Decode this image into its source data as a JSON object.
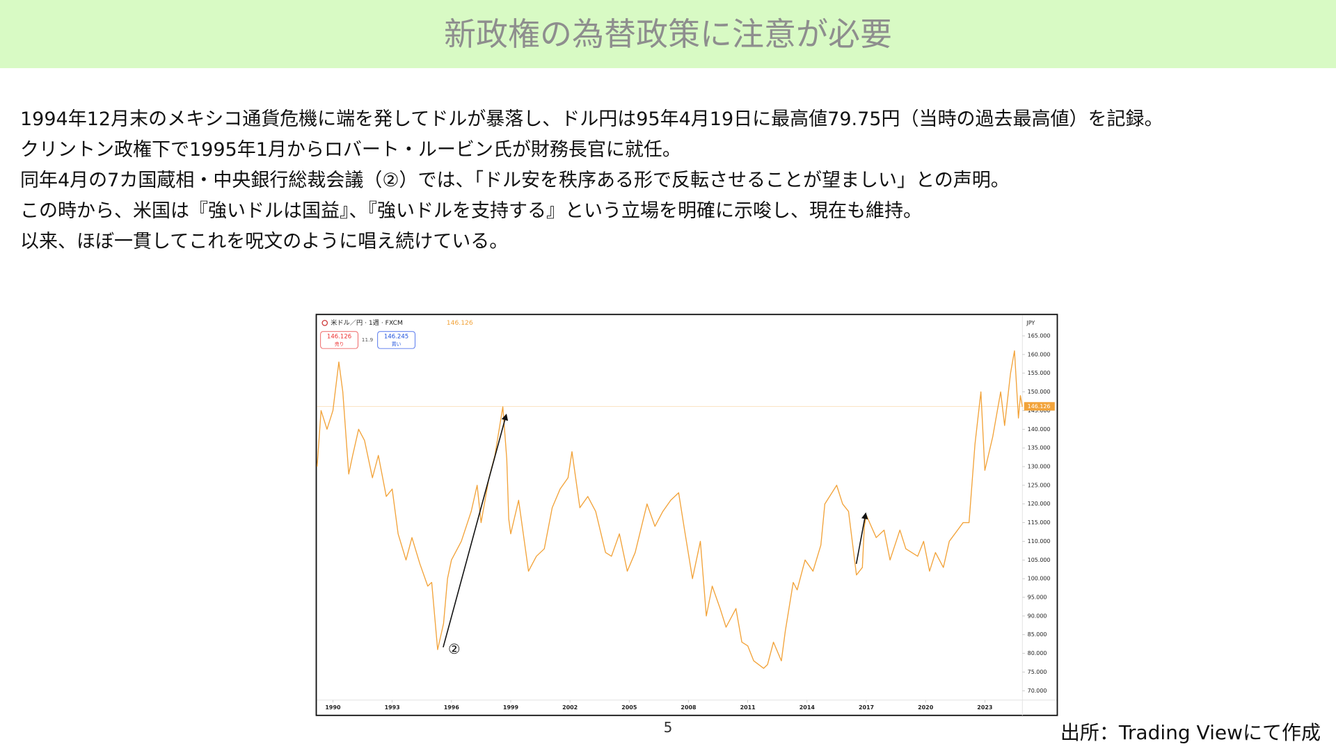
{
  "header": {
    "title": "新政権の為替政策に注意が必要"
  },
  "body": {
    "lines": [
      "1994年12月末のメキシコ通貨危機に端を発してドルが暴落し、ドル円は95年4月19日に最高値79.75円（当時の過去最高値）を記録。",
      "クリントン政権下で1995年1月からロバート・ルービン氏が財務長官に就任。",
      "同年4月の7カ国蔵相・中央銀行総裁会議（②）では、「ドル安を秩序ある形で反転させることが望ましい」との声明。",
      "この時から、米国は『強いドルは国益』、『強いドルを支持する』という立場を明確に示唆し、現在も維持。",
      "以来、ほぼ一貫してこれを呪文のように唱え続けている。"
    ]
  },
  "chart_data": {
    "type": "line",
    "title": "米ドル／円 · 1週 · FXCM",
    "last_price": 146.126,
    "last_price_label": "146.126",
    "sell": {
      "label": "146.126",
      "text": "売り"
    },
    "spread": "11.9",
    "buy": {
      "label": "146.245",
      "text": "買い"
    },
    "currency": "JPY",
    "annotation": "②",
    "series": [
      {
        "name": "米ドル／円",
        "color": "#f2a33a",
        "x": [
          1989.2,
          1989.4,
          1989.7,
          1990.0,
          1990.3,
          1990.5,
          1990.8,
          1991.0,
          1991.3,
          1991.6,
          1992.0,
          1992.3,
          1992.7,
          1993.0,
          1993.3,
          1993.7,
          1994.0,
          1994.4,
          1994.8,
          1995.0,
          1995.3,
          1995.6,
          1995.8,
          1996.0,
          1996.5,
          1997.0,
          1997.3,
          1997.5,
          1997.9,
          1998.2,
          1998.6,
          1998.8,
          1998.9,
          1999.0,
          1999.4,
          1999.9,
          2000.3,
          2000.7,
          2001.1,
          2001.5,
          2001.9,
          2002.1,
          2002.5,
          2002.9,
          2003.3,
          2003.8,
          2004.1,
          2004.5,
          2004.9,
          2005.3,
          2005.9,
          2006.3,
          2006.7,
          2007.1,
          2007.5,
          2007.8,
          2008.2,
          2008.6,
          2008.9,
          2009.2,
          2009.6,
          2009.9,
          2010.4,
          2010.7,
          2011.0,
          2011.3,
          2011.8,
          2012.0,
          2012.3,
          2012.7,
          2012.9,
          2013.3,
          2013.5,
          2013.9,
          2014.3,
          2014.7,
          2014.9,
          2015.5,
          2015.8,
          2016.1,
          2016.5,
          2016.8,
          2016.9,
          2017.0,
          2017.5,
          2017.9,
          2018.2,
          2018.7,
          2019.0,
          2019.6,
          2019.9,
          2020.2,
          2020.5,
          2020.9,
          2021.2,
          2021.9,
          2022.2,
          2022.5,
          2022.8,
          2023.0,
          2023.4,
          2023.8,
          2024.0,
          2024.3,
          2024.5,
          2024.7,
          2024.8,
          2024.9
        ],
        "values": [
          130,
          145,
          140,
          145,
          158,
          150,
          128,
          133,
          140,
          137,
          127,
          133,
          122,
          124,
          112,
          105,
          111,
          104,
          98,
          99,
          81,
          88,
          100,
          105,
          110,
          118,
          125,
          115,
          127,
          133,
          146,
          132,
          116,
          112,
          121,
          102,
          106,
          108,
          119,
          124,
          127,
          134,
          119,
          122,
          118,
          107,
          106,
          112,
          102,
          107,
          120,
          114,
          118,
          121,
          123,
          113,
          100,
          110,
          90,
          98,
          92,
          87,
          92,
          83,
          82,
          78,
          76,
          77,
          83,
          78,
          86,
          99,
          97,
          105,
          102,
          109,
          120,
          125,
          120,
          118,
          101,
          103,
          114,
          117,
          111,
          113,
          105,
          113,
          108,
          106,
          110,
          102,
          107,
          103,
          110,
          115,
          115,
          136,
          150,
          129,
          138,
          150,
          141,
          155,
          161,
          143,
          149,
          146
        ]
      }
    ],
    "xlim": [
      1989.2,
      2024.9
    ],
    "ylim": [
      67.5,
      170.5
    ],
    "xticks": [
      1990,
      1993,
      1996,
      1999,
      2002,
      2005,
      2008,
      2011,
      2014,
      2017,
      2020,
      2023
    ],
    "yticks": [
      {
        "value": 70,
        "label": "70.000"
      },
      {
        "value": 75,
        "label": "75.000"
      },
      {
        "value": 80,
        "label": "80.000"
      },
      {
        "value": 85,
        "label": "85.000"
      },
      {
        "value": 90,
        "label": "90.000"
      },
      {
        "value": 95,
        "label": "95.000"
      },
      {
        "value": 100,
        "label": "100.000"
      },
      {
        "value": 105,
        "label": "105.000"
      },
      {
        "value": 110,
        "label": "110.000"
      },
      {
        "value": 115,
        "label": "115.000"
      },
      {
        "value": 120,
        "label": "120.000"
      },
      {
        "value": 125,
        "label": "125.000"
      },
      {
        "value": 130,
        "label": "130.000"
      },
      {
        "value": 135,
        "label": "135.000"
      },
      {
        "value": 140,
        "label": "140.000"
      },
      {
        "value": 145,
        "label": "145.000"
      },
      {
        "value": 150,
        "label": "150.000"
      },
      {
        "value": 155,
        "label": "155.000"
      },
      {
        "value": 160,
        "label": "160.000"
      },
      {
        "value": 165,
        "label": "165.000"
      }
    ]
  },
  "footer": {
    "page": "5",
    "source": "出所：Trading Viewにて作成"
  }
}
